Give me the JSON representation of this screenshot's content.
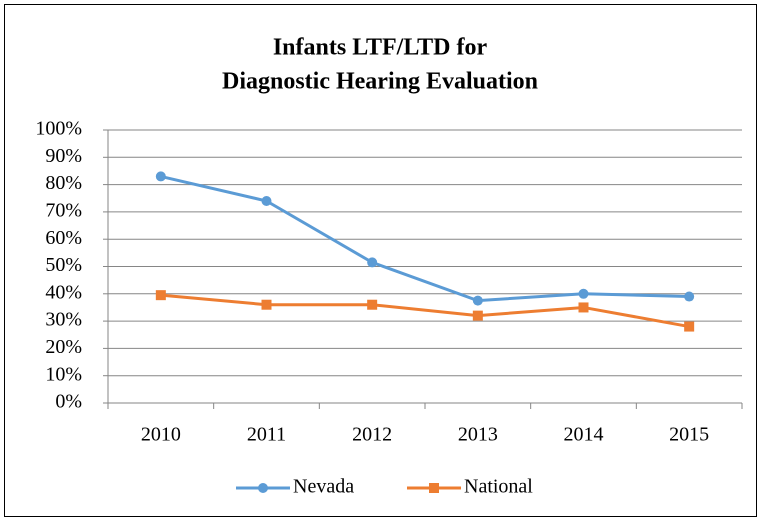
{
  "chart_data": {
    "type": "line",
    "title": [
      "Infants LTF/LTD for",
      "Diagnostic Hearing Evaluation"
    ],
    "categories": [
      "2010",
      "2011",
      "2012",
      "2013",
      "2014",
      "2015"
    ],
    "series": [
      {
        "name": "Nevada",
        "color": "#5b9bd5",
        "marker": "circle",
        "values": [
          83,
          74,
          51.5,
          37.5,
          40,
          39
        ]
      },
      {
        "name": "National",
        "color": "#ed7d31",
        "marker": "square",
        "values": [
          39.5,
          36,
          36,
          32,
          35,
          28
        ]
      }
    ],
    "ylim": [
      0,
      100
    ],
    "yticks": [
      {
        "value": 0,
        "label": "0%"
      },
      {
        "value": 10,
        "label": "10%"
      },
      {
        "value": 20,
        "label": "20%"
      },
      {
        "value": 30,
        "label": "30%"
      },
      {
        "value": 40,
        "label": "40%"
      },
      {
        "value": 50,
        "label": "50%"
      },
      {
        "value": 60,
        "label": "60%"
      },
      {
        "value": 70,
        "label": "70%"
      },
      {
        "value": 80,
        "label": "80%"
      },
      {
        "value": 90,
        "label": "90%"
      },
      {
        "value": 100,
        "label": "100%"
      }
    ],
    "grid": true,
    "legend": "bottom"
  }
}
